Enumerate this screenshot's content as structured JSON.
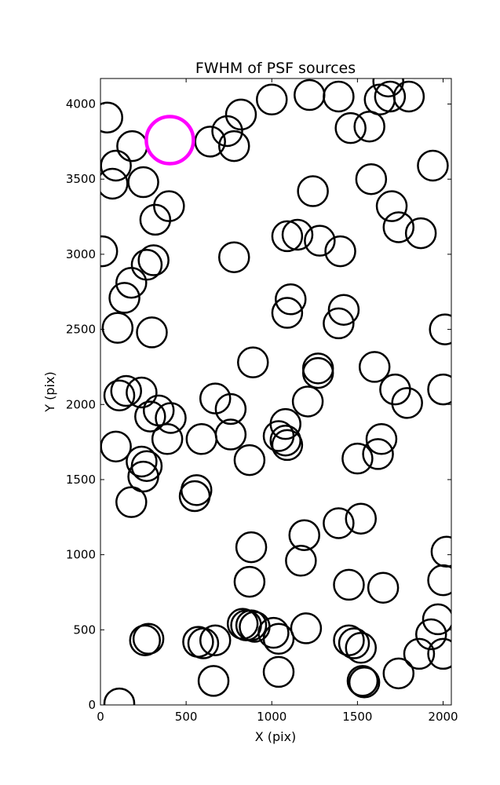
{
  "chart_data": {
    "type": "scatter",
    "title": "FWHM of PSF sources",
    "xlabel": "X (pix)",
    "ylabel": "Y (pix)",
    "xlim": [
      0,
      2048
    ],
    "ylim": [
      0,
      4170
    ],
    "xticks": [
      0,
      500,
      1000,
      1500,
      2000
    ],
    "yticks": [
      0,
      500,
      1000,
      1500,
      2000,
      2500,
      3000,
      3500,
      4000
    ],
    "grid": false,
    "marker": "open-circle",
    "default_color": "#000000",
    "highlight_color": "#ff00ff",
    "series": [
      {
        "points": [
          {
            "x": 40,
            "y": 3910
          },
          {
            "x": 90,
            "y": 3590
          },
          {
            "x": 70,
            "y": 3470
          },
          {
            "x": 185,
            "y": 3720
          },
          {
            "x": 250,
            "y": 3480
          },
          {
            "x": 640,
            "y": 3750
          },
          {
            "x": 740,
            "y": 3820
          },
          {
            "x": 780,
            "y": 3720
          },
          {
            "x": 820,
            "y": 3930
          },
          {
            "x": 1000,
            "y": 4030
          },
          {
            "x": 1220,
            "y": 4060
          },
          {
            "x": 1390,
            "y": 4050
          },
          {
            "x": 1460,
            "y": 3840
          },
          {
            "x": 1570,
            "y": 3850
          },
          {
            "x": 1630,
            "y": 4030
          },
          {
            "x": 1680,
            "y": 4150
          },
          {
            "x": 1690,
            "y": 4050
          },
          {
            "x": 1800,
            "y": 4050
          },
          {
            "x": 1940,
            "y": 3590
          },
          {
            "x": 1580,
            "y": 3500
          },
          {
            "x": 1240,
            "y": 3420
          },
          {
            "x": 1700,
            "y": 3320
          },
          {
            "x": 1740,
            "y": 3180
          },
          {
            "x": 1870,
            "y": 3140
          },
          {
            "x": 400,
            "y": 3320
          },
          {
            "x": 320,
            "y": 3230
          },
          {
            "x": 10,
            "y": 3020
          },
          {
            "x": 310,
            "y": 2960
          },
          {
            "x": 270,
            "y": 2930
          },
          {
            "x": 180,
            "y": 2810
          },
          {
            "x": 140,
            "y": 2710
          },
          {
            "x": 100,
            "y": 2510
          },
          {
            "x": 300,
            "y": 2480
          },
          {
            "x": 780,
            "y": 2980
          },
          {
            "x": 1090,
            "y": 3120
          },
          {
            "x": 1150,
            "y": 3130
          },
          {
            "x": 1280,
            "y": 3090
          },
          {
            "x": 1400,
            "y": 3020
          },
          {
            "x": 1110,
            "y": 2700
          },
          {
            "x": 1090,
            "y": 2610
          },
          {
            "x": 1420,
            "y": 2630
          },
          {
            "x": 1390,
            "y": 2540
          },
          {
            "x": 2010,
            "y": 2500
          },
          {
            "x": 890,
            "y": 2280
          },
          {
            "x": 1270,
            "y": 2240
          },
          {
            "x": 1270,
            "y": 2210
          },
          {
            "x": 1600,
            "y": 2250
          },
          {
            "x": 1720,
            "y": 2100
          },
          {
            "x": 1790,
            "y": 2010
          },
          {
            "x": 2000,
            "y": 2100
          },
          {
            "x": 1210,
            "y": 2020
          },
          {
            "x": 670,
            "y": 2040
          },
          {
            "x": 760,
            "y": 1970
          },
          {
            "x": 110,
            "y": 2060
          },
          {
            "x": 150,
            "y": 2090
          },
          {
            "x": 240,
            "y": 2080
          },
          {
            "x": 340,
            "y": 1960
          },
          {
            "x": 290,
            "y": 1920
          },
          {
            "x": 410,
            "y": 1910
          },
          {
            "x": 390,
            "y": 1770
          },
          {
            "x": 590,
            "y": 1770
          },
          {
            "x": 760,
            "y": 1800
          },
          {
            "x": 870,
            "y": 1630
          },
          {
            "x": 1040,
            "y": 1790
          },
          {
            "x": 1080,
            "y": 1870
          },
          {
            "x": 1080,
            "y": 1760
          },
          {
            "x": 1090,
            "y": 1730
          },
          {
            "x": 1500,
            "y": 1640
          },
          {
            "x": 1620,
            "y": 1670
          },
          {
            "x": 1640,
            "y": 1770
          },
          {
            "x": 90,
            "y": 1720
          },
          {
            "x": 240,
            "y": 1620
          },
          {
            "x": 270,
            "y": 1590
          },
          {
            "x": 250,
            "y": 1520
          },
          {
            "x": 180,
            "y": 1350
          },
          {
            "x": 560,
            "y": 1430
          },
          {
            "x": 550,
            "y": 1390
          },
          {
            "x": 1390,
            "y": 1210
          },
          {
            "x": 1520,
            "y": 1240
          },
          {
            "x": 1190,
            "y": 1130
          },
          {
            "x": 1170,
            "y": 960
          },
          {
            "x": 880,
            "y": 1050
          },
          {
            "x": 870,
            "y": 820
          },
          {
            "x": 2020,
            "y": 1020
          },
          {
            "x": 2000,
            "y": 830
          },
          {
            "x": 1450,
            "y": 800
          },
          {
            "x": 1650,
            "y": 780
          },
          {
            "x": 1200,
            "y": 510
          },
          {
            "x": 1010,
            "y": 480
          },
          {
            "x": 1040,
            "y": 440
          },
          {
            "x": 830,
            "y": 540
          },
          {
            "x": 850,
            "y": 530
          },
          {
            "x": 880,
            "y": 530
          },
          {
            "x": 900,
            "y": 520
          },
          {
            "x": 670,
            "y": 430
          },
          {
            "x": 600,
            "y": 410
          },
          {
            "x": 570,
            "y": 420
          },
          {
            "x": 260,
            "y": 430
          },
          {
            "x": 280,
            "y": 440
          },
          {
            "x": 1040,
            "y": 220
          },
          {
            "x": 660,
            "y": 160
          },
          {
            "x": 110,
            "y": 10
          },
          {
            "x": 1450,
            "y": 430
          },
          {
            "x": 1480,
            "y": 410
          },
          {
            "x": 1520,
            "y": 380
          },
          {
            "x": 1530,
            "y": 160
          },
          {
            "x": 1540,
            "y": 150
          },
          {
            "x": 1740,
            "y": 210
          },
          {
            "x": 1860,
            "y": 340
          },
          {
            "x": 1930,
            "y": 470
          },
          {
            "x": 1970,
            "y": 570
          },
          {
            "x": 2000,
            "y": 340
          }
        ]
      },
      {
        "highlight": true,
        "points": [
          {
            "x": 405,
            "y": 3760
          }
        ]
      }
    ]
  }
}
